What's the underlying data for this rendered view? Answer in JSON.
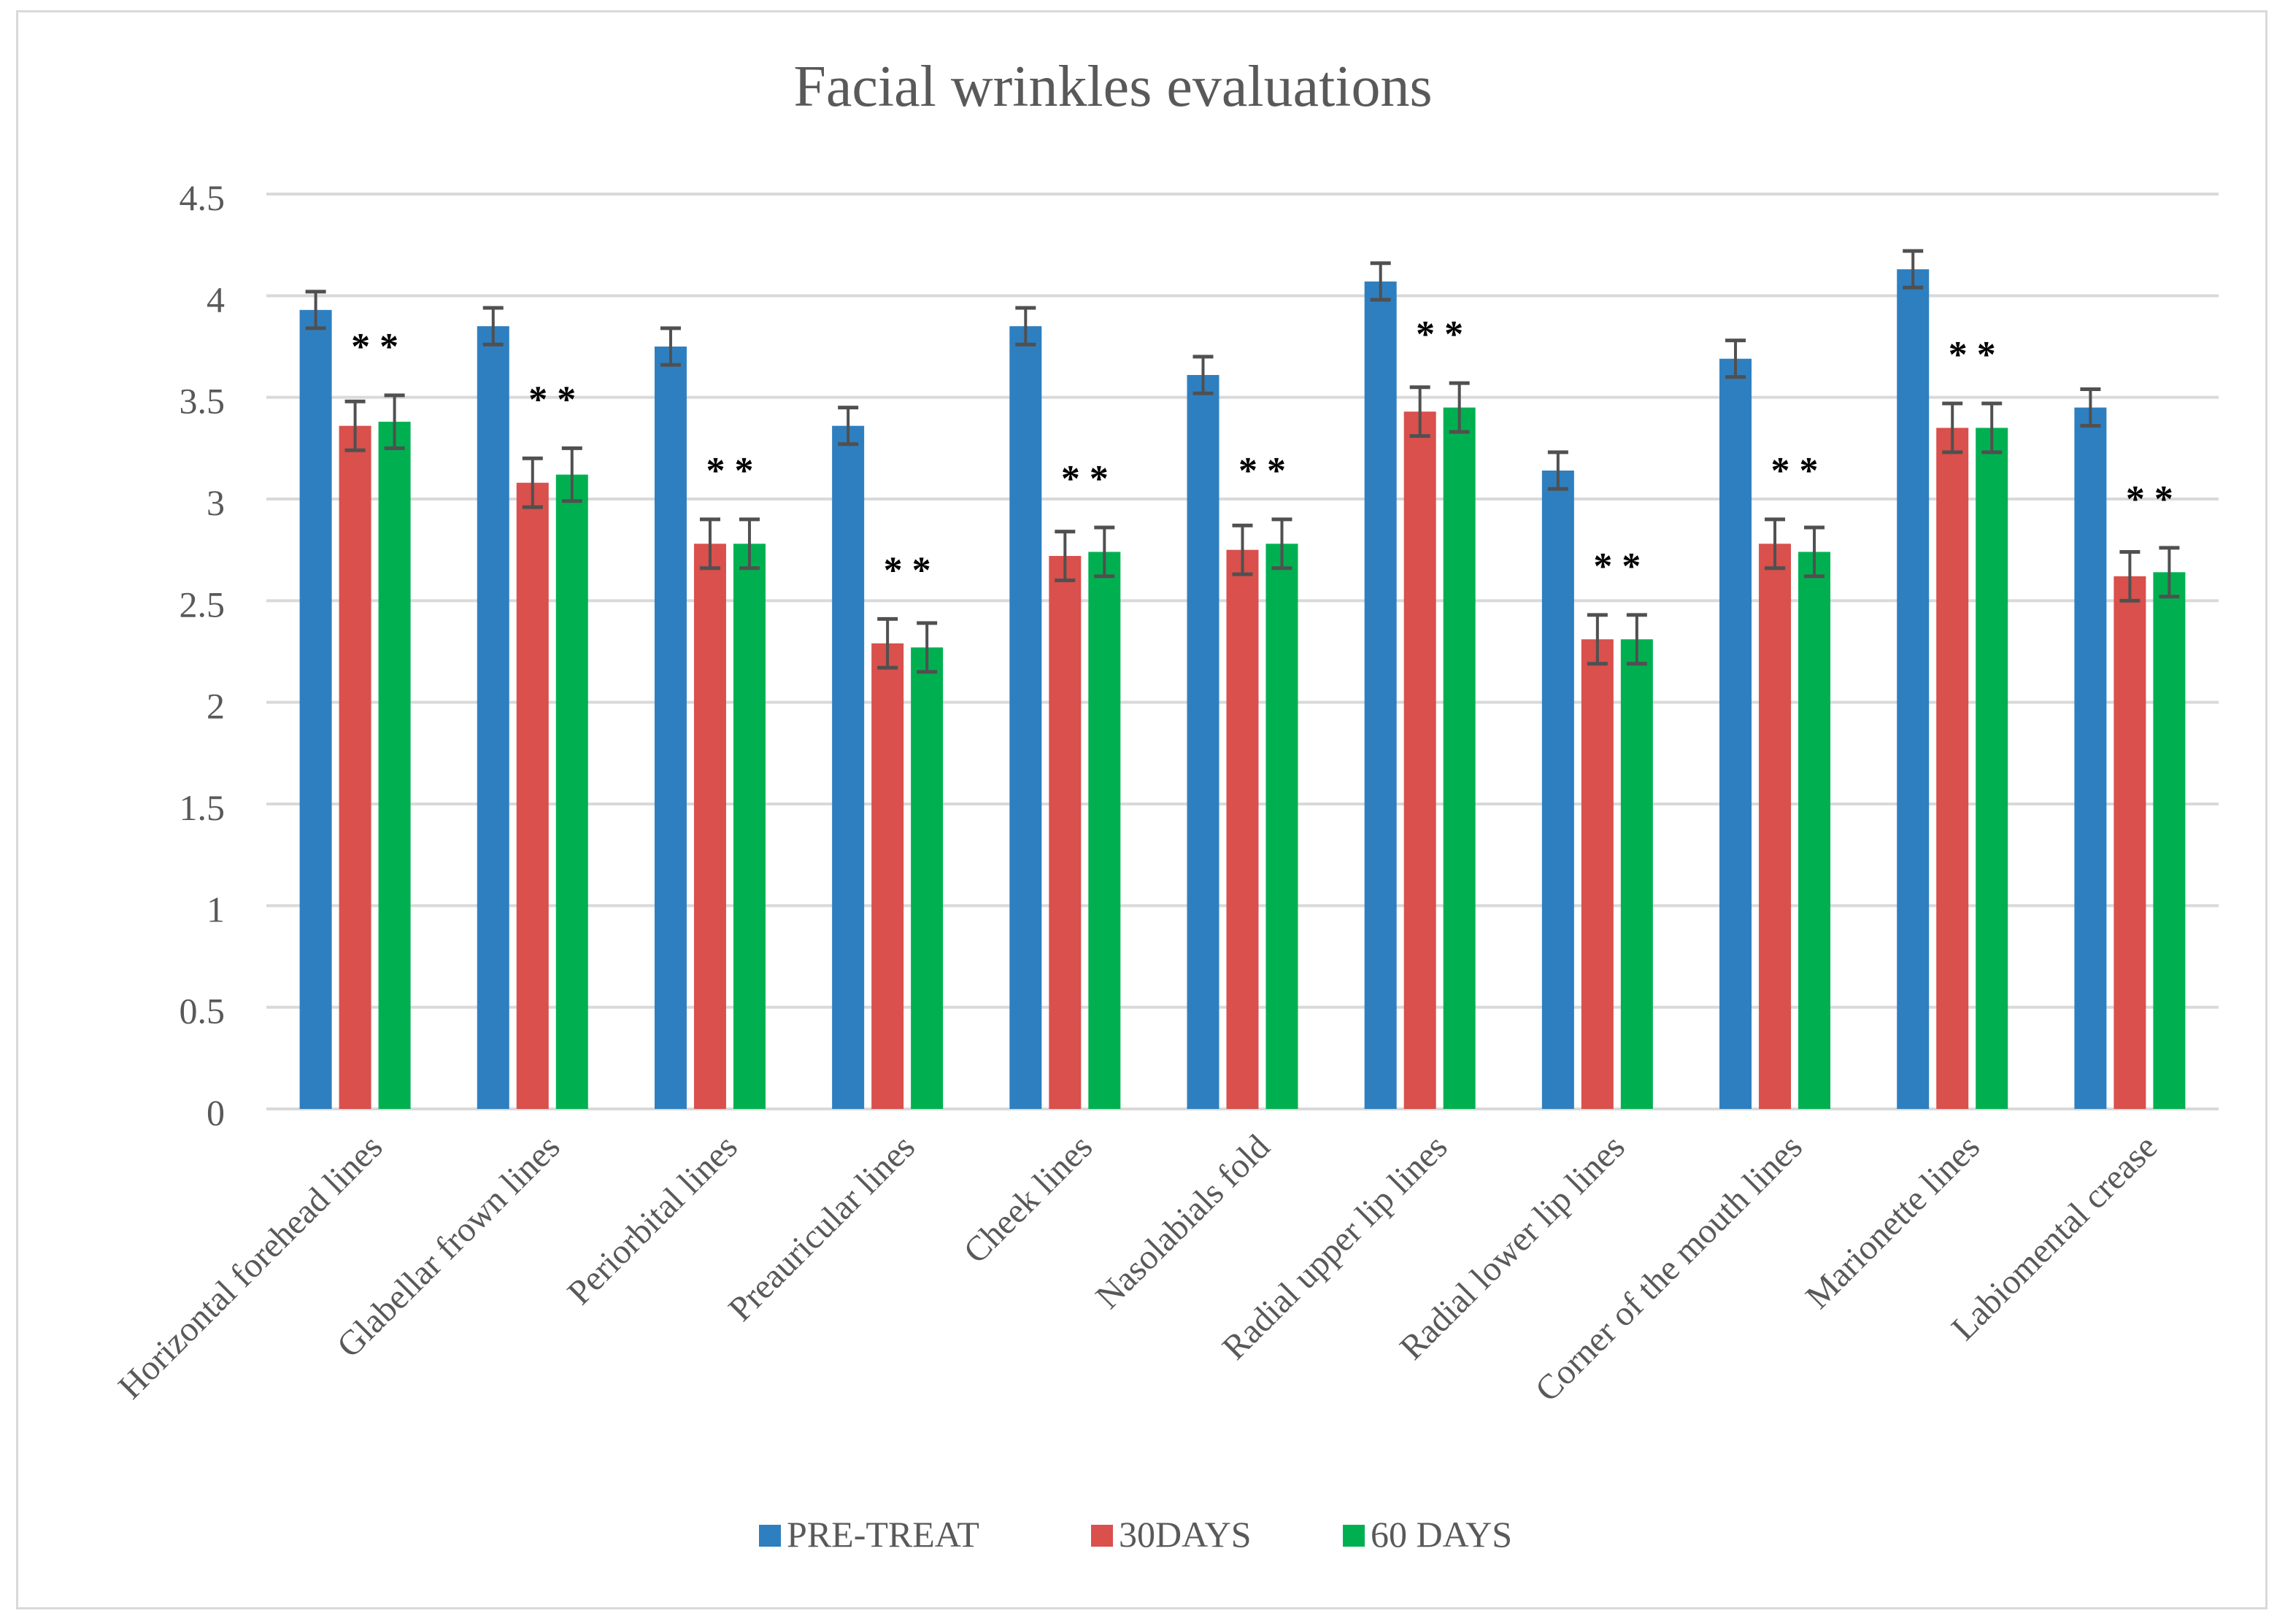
{
  "chart_data": {
    "type": "bar",
    "title": "Facial wrinkles evaluations",
    "xlabel": "",
    "ylabel": "",
    "ylim": [
      0,
      4.5
    ],
    "yticks": [
      "0",
      "0.5",
      "1",
      "1.5",
      "2",
      "2.5",
      "3",
      "3.5",
      "4",
      "4.5"
    ],
    "grid": true,
    "legend_position": "bottom",
    "categories": [
      "Horizontal forehead lines",
      "Glabellar frown lines",
      "Periorbital lines",
      "Preauricular lines",
      "Cheek lines",
      "Nasolabials fold",
      "Radial upper lip lines",
      "Radial lower lip lines",
      "Corner of the mouth lines",
      "Marionette lines",
      "Labiomental crease"
    ],
    "series": [
      {
        "name": "PRE-TREAT",
        "color": "#2e7fc0",
        "values": [
          3.93,
          3.85,
          3.75,
          3.36,
          3.85,
          3.61,
          4.07,
          3.14,
          3.69,
          4.13,
          3.45
        ],
        "errors": [
          0.09,
          0.09,
          0.09,
          0.09,
          0.09,
          0.09,
          0.09,
          0.09,
          0.09,
          0.09,
          0.09
        ]
      },
      {
        "name": "30DAYS",
        "color": "#d9504c",
        "values": [
          3.36,
          3.08,
          2.78,
          2.29,
          2.72,
          2.75,
          3.43,
          2.31,
          2.78,
          3.35,
          2.62
        ],
        "errors": [
          0.12,
          0.12,
          0.12,
          0.12,
          0.12,
          0.12,
          0.12,
          0.12,
          0.12,
          0.12,
          0.12
        ]
      },
      {
        "name": "60 DAYS",
        "color": "#00b050",
        "values": [
          3.38,
          3.12,
          2.78,
          2.27,
          2.74,
          2.78,
          3.45,
          2.31,
          2.74,
          3.35,
          2.64
        ],
        "errors": [
          0.13,
          0.13,
          0.12,
          0.12,
          0.12,
          0.12,
          0.12,
          0.12,
          0.12,
          0.12,
          0.12
        ]
      }
    ],
    "annotations": [
      "* *",
      "* *",
      "* *",
      "* *",
      "* *",
      "* *",
      "* *",
      "* *",
      "* *",
      "* *",
      "* *"
    ]
  }
}
